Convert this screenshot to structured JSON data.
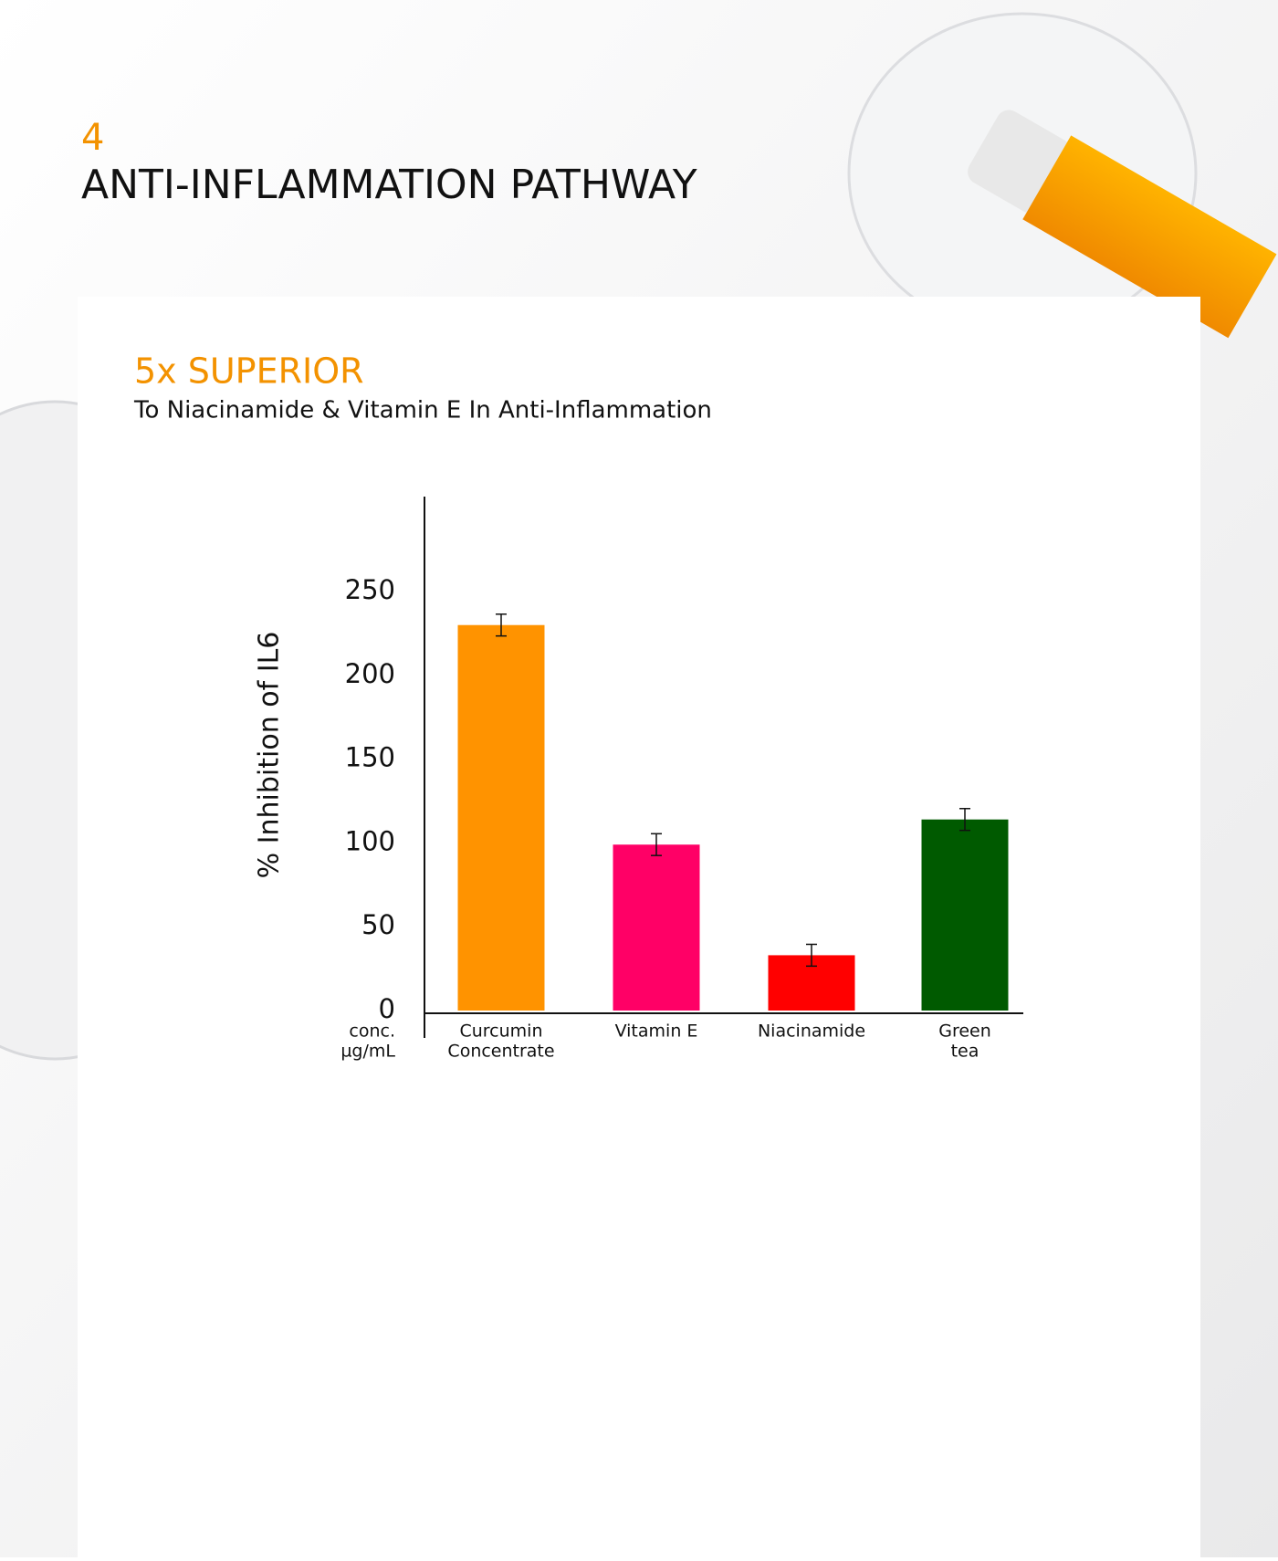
{
  "header": {
    "number": "4",
    "title": "ANTI-INFLAMMATION PATHWAY"
  },
  "chart_data": {
    "type": "bar",
    "title": "5x SUPERIOR",
    "subtitle": "To Niacinamide & Vitamin E In Anti-Inflammation",
    "y_label": "% Inhibition of IL6",
    "x_unit_label": [
      "conc.",
      "µg/mL"
    ],
    "categories": [
      [
        "Curcumin",
        "Concentrate"
      ],
      [
        "Vitamin E"
      ],
      [
        "Niacinamide"
      ],
      [
        "Green",
        "tea"
      ]
    ],
    "values": [
      230,
      99,
      33,
      114
    ],
    "errors": [
      6.5,
      6.5,
      6.5,
      6.5
    ],
    "colors": [
      "#ff9300",
      "#ff0066",
      "#ff0000",
      "#005a00"
    ],
    "ylim": [
      0,
      300
    ],
    "yticks": [
      0,
      50,
      100,
      150,
      200,
      250
    ],
    "grid": false
  }
}
